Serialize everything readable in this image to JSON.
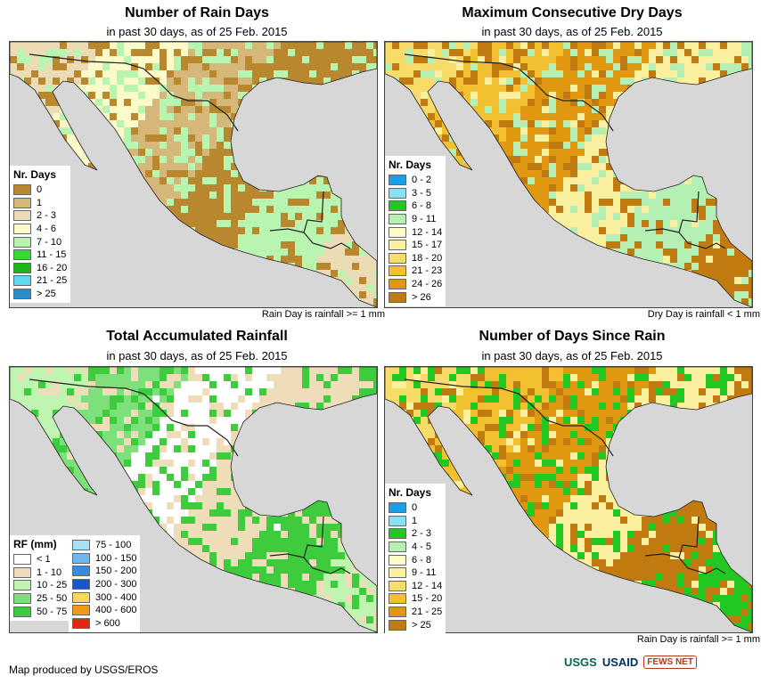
{
  "panels": [
    {
      "id": "rain-days",
      "title": "Number of Rain Days",
      "subtitle": "in past 30 days, as of 25 Feb. 2015",
      "note": "Rain Day is rainfall >= 1 mm",
      "legend_title": "Nr. Days",
      "legend": [
        {
          "label": "0",
          "color": "#b8872e"
        },
        {
          "label": "1",
          "color": "#d6b77a"
        },
        {
          "label": "2 - 3",
          "color": "#ecdcb6"
        },
        {
          "label": "4 - 6",
          "color": "#fbfac8"
        },
        {
          "label": "7 - 10",
          "color": "#b8f5b0"
        },
        {
          "label": "11 - 15",
          "color": "#38d838"
        },
        {
          "label": "16 - 20",
          "color": "#18b818"
        },
        {
          "label": "21 - 25",
          "color": "#60d8f0"
        },
        {
          "label": "> 25",
          "color": "#1f8fd0"
        }
      ],
      "dominant": [
        "#ecdcb6",
        "#fbfac8",
        "#d6b77a",
        "#b8872e",
        "#b8f5b0"
      ]
    },
    {
      "id": "dry-days",
      "title": "Maximum Consecutive Dry Days",
      "subtitle": "in past 30 days, as of 25 Feb. 2015",
      "note": "Dry Day is rainfall < 1 mm",
      "legend_title": "Nr. Days",
      "legend": [
        {
          "label": "0 - 2",
          "color": "#1aa0ea"
        },
        {
          "label": "3 - 5",
          "color": "#8ae0f5"
        },
        {
          "label": "6 - 8",
          "color": "#22c822"
        },
        {
          "label": "9 - 11",
          "color": "#b4f0b4"
        },
        {
          "label": "12 - 14",
          "color": "#fcfac8"
        },
        {
          "label": "15 - 17",
          "color": "#faf0a0"
        },
        {
          "label": "18 - 20",
          "color": "#f8dc6a"
        },
        {
          "label": "21 - 23",
          "color": "#f2c030"
        },
        {
          "label": "24 - 26",
          "color": "#e09810"
        },
        {
          "label": "> 26",
          "color": "#c07a10"
        }
      ],
      "dominant": [
        "#f8dc6a",
        "#f2c030",
        "#e09810",
        "#faf0a0",
        "#b4f0b4",
        "#c07a10"
      ]
    },
    {
      "id": "rainfall",
      "title": "Total Accumulated Rainfall",
      "subtitle": "in past 30 days, as of 25 Feb. 2015",
      "note": "",
      "legend_title": "RF (mm)",
      "legend": [
        {
          "label": "< 1",
          "color": "#ffffff"
        },
        {
          "label": "1 - 10",
          "color": "#efdcb8"
        },
        {
          "label": "10 - 25",
          "color": "#bff5b0"
        },
        {
          "label": "25 - 50",
          "color": "#7ee07a"
        },
        {
          "label": "50 - 75",
          "color": "#3ecc3e"
        }
      ],
      "legend2": [
        {
          "label": "75 - 100",
          "color": "#a8e0f8"
        },
        {
          "label": "100 - 150",
          "color": "#6cb8ee"
        },
        {
          "label": "150 - 200",
          "color": "#3c88e0"
        },
        {
          "label": "200 - 300",
          "color": "#1858c8"
        },
        {
          "label": "300 - 400",
          "color": "#f8d860"
        },
        {
          "label": "400 - 600",
          "color": "#f09818"
        },
        {
          "label": "> 600",
          "color": "#e02810"
        }
      ],
      "dominant": [
        "#bff5b0",
        "#7ee07a",
        "#ffffff",
        "#efdcb8",
        "#3ecc3e"
      ]
    },
    {
      "id": "since-rain",
      "title": "Number of Days Since Rain",
      "subtitle": "in past 30 days, as of 25 Feb. 2015",
      "note": "Rain Day is rainfall >= 1 mm",
      "legend_title": "Nr. Days",
      "legend": [
        {
          "label": "0",
          "color": "#1aa0ea"
        },
        {
          "label": "1",
          "color": "#8ae0f5"
        },
        {
          "label": "2 - 3",
          "color": "#22c822"
        },
        {
          "label": "4 - 5",
          "color": "#b4f0b4"
        },
        {
          "label": "6 - 8",
          "color": "#fcfac8"
        },
        {
          "label": "9 - 11",
          "color": "#faf0a0"
        },
        {
          "label": "12 - 14",
          "color": "#f8dc6a"
        },
        {
          "label": "15 - 20",
          "color": "#f2c030"
        },
        {
          "label": "21 - 25",
          "color": "#e09810"
        },
        {
          "label": "> 25",
          "color": "#c07a10"
        }
      ],
      "dominant": [
        "#f8dc6a",
        "#f2c030",
        "#e09810",
        "#faf0a0",
        "#c07a10",
        "#22c822"
      ]
    }
  ],
  "map_colors": {
    "ocean": "#d7d7d7",
    "border": "#222222"
  },
  "footer": {
    "credit": "Map produced by USGS/EROS",
    "logo_usgs": "USGS",
    "logo_usaid": "USAID",
    "logo_fews": "FEWS NET"
  }
}
